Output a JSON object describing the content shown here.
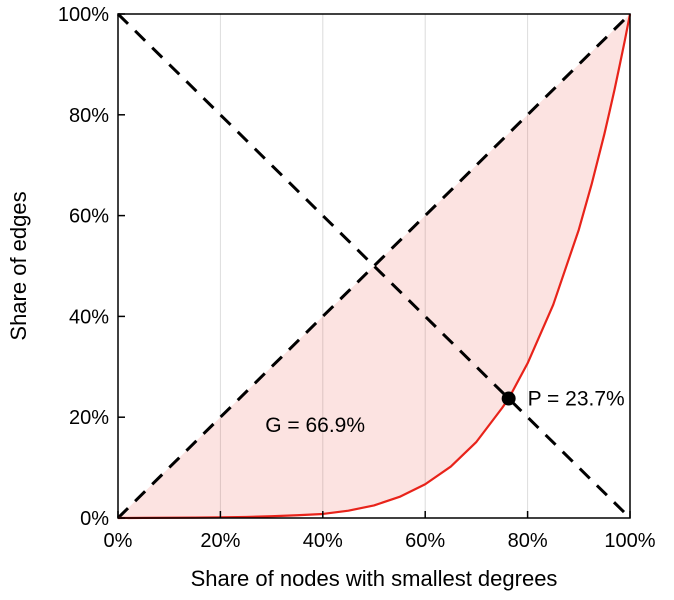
{
  "figure": {
    "background": "#ffffff"
  },
  "chart_data": {
    "type": "line",
    "title": "",
    "xlabel": "Share of nodes with smallest degrees",
    "ylabel": "Share of edges",
    "xlim": [
      0,
      100
    ],
    "ylim": [
      0,
      100
    ],
    "x_ticks": [
      0,
      20,
      40,
      60,
      80,
      100
    ],
    "y_ticks": [
      0,
      20,
      40,
      60,
      80,
      100
    ],
    "x_tick_labels": [
      "0%",
      "20%",
      "40%",
      "60%",
      "80%",
      "100%"
    ],
    "y_tick_labels": [
      "0%",
      "20%",
      "40%",
      "60%",
      "80%",
      "100%"
    ],
    "grid": "vertical",
    "grid_color": "#dcdcdc",
    "legend": "none",
    "series": [
      {
        "name": "equality-line",
        "type": "line",
        "style": "dashed",
        "color": "#000000",
        "points": [
          [
            0,
            0
          ],
          [
            100,
            100
          ]
        ]
      },
      {
        "name": "anti-diagonal-line",
        "type": "line",
        "style": "dashed",
        "color": "#000000",
        "points": [
          [
            0,
            100
          ],
          [
            100,
            0
          ]
        ]
      },
      {
        "name": "lorenz-curve",
        "type": "line",
        "style": "solid",
        "color": "#e8231a",
        "points": [
          [
            0,
            0
          ],
          [
            5,
            0.02
          ],
          [
            10,
            0.05
          ],
          [
            15,
            0.08
          ],
          [
            20,
            0.12
          ],
          [
            25,
            0.2
          ],
          [
            30,
            0.35
          ],
          [
            35,
            0.55
          ],
          [
            40,
            0.8
          ],
          [
            45,
            1.45
          ],
          [
            50,
            2.5
          ],
          [
            55,
            4.2
          ],
          [
            60,
            6.7
          ],
          [
            65,
            10.2
          ],
          [
            70,
            15.1
          ],
          [
            75,
            21.8
          ],
          [
            76.3,
            23.7
          ],
          [
            80,
            30.7
          ],
          [
            85,
            42.3
          ],
          [
            90,
            57.2
          ],
          [
            92.5,
            66.2
          ],
          [
            95,
            76.2
          ],
          [
            96,
            80.6
          ],
          [
            97,
            85.1
          ],
          [
            98,
            89.9
          ],
          [
            99,
            94.8
          ],
          [
            100,
            100
          ]
        ]
      }
    ],
    "shaded_region": {
      "between": [
        "equality-line",
        "lorenz-curve"
      ],
      "color": "rgba(232, 35, 26, 0.13)"
    },
    "point": {
      "x": 76.3,
      "y": 23.7,
      "color": "#000000",
      "marker": "filled-circle"
    },
    "annotations": [
      {
        "text": "G = 66.9%",
        "x": 38.5,
        "y": 18.5,
        "anchor": "middle"
      },
      {
        "text": "P = 23.7%",
        "x": 80,
        "y": 23.7,
        "anchor": "start"
      }
    ],
    "gini_value": "66.9%",
    "p_value": "23.7%"
  }
}
